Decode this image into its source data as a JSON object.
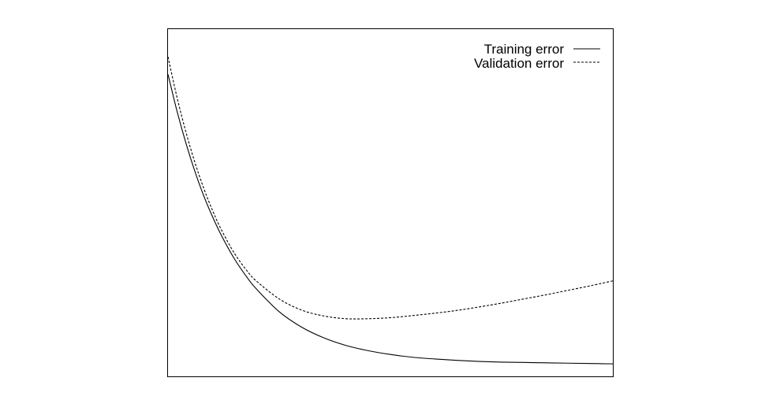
{
  "chart_data": {
    "type": "line",
    "title": "",
    "xlabel": "",
    "ylabel": "",
    "xlim": [
      0,
      100
    ],
    "ylim": [
      0,
      100
    ],
    "grid": false,
    "legend_position": "top-right",
    "series": [
      {
        "name": "Training error",
        "line_style": "solid",
        "color": "#000000",
        "x": [
          0,
          2,
          4,
          6,
          8,
          10,
          12,
          15,
          18,
          20,
          25,
          30,
          35,
          40,
          45,
          50,
          55,
          60,
          65,
          70,
          75,
          80,
          85,
          90,
          95,
          100
        ],
        "y": [
          87.0,
          76.5,
          67.3,
          59.2,
          52.1,
          46.0,
          40.6,
          33.7,
          28.1,
          25.0,
          18.6,
          14.2,
          11.1,
          8.9,
          7.4,
          6.3,
          5.5,
          5.0,
          4.6,
          4.3,
          4.1,
          4.0,
          3.9,
          3.8,
          3.7,
          3.6
        ]
      },
      {
        "name": "Validation error",
        "line_style": "dashed",
        "color": "#000000",
        "x": [
          0,
          2,
          4,
          6,
          8,
          10,
          12,
          15,
          18,
          20,
          25,
          30,
          35,
          40,
          45,
          50,
          55,
          60,
          65,
          70,
          75,
          80,
          85,
          90,
          95,
          100
        ],
        "y": [
          92.0,
          80.5,
          70.5,
          61.8,
          54.3,
          47.8,
          42.2,
          35.3,
          30.0,
          27.3,
          22.3,
          19.1,
          17.4,
          16.6,
          16.6,
          16.9,
          17.5,
          18.2,
          19.0,
          20.0,
          21.1,
          22.3,
          23.5,
          24.8,
          26.1,
          27.5
        ]
      }
    ]
  }
}
